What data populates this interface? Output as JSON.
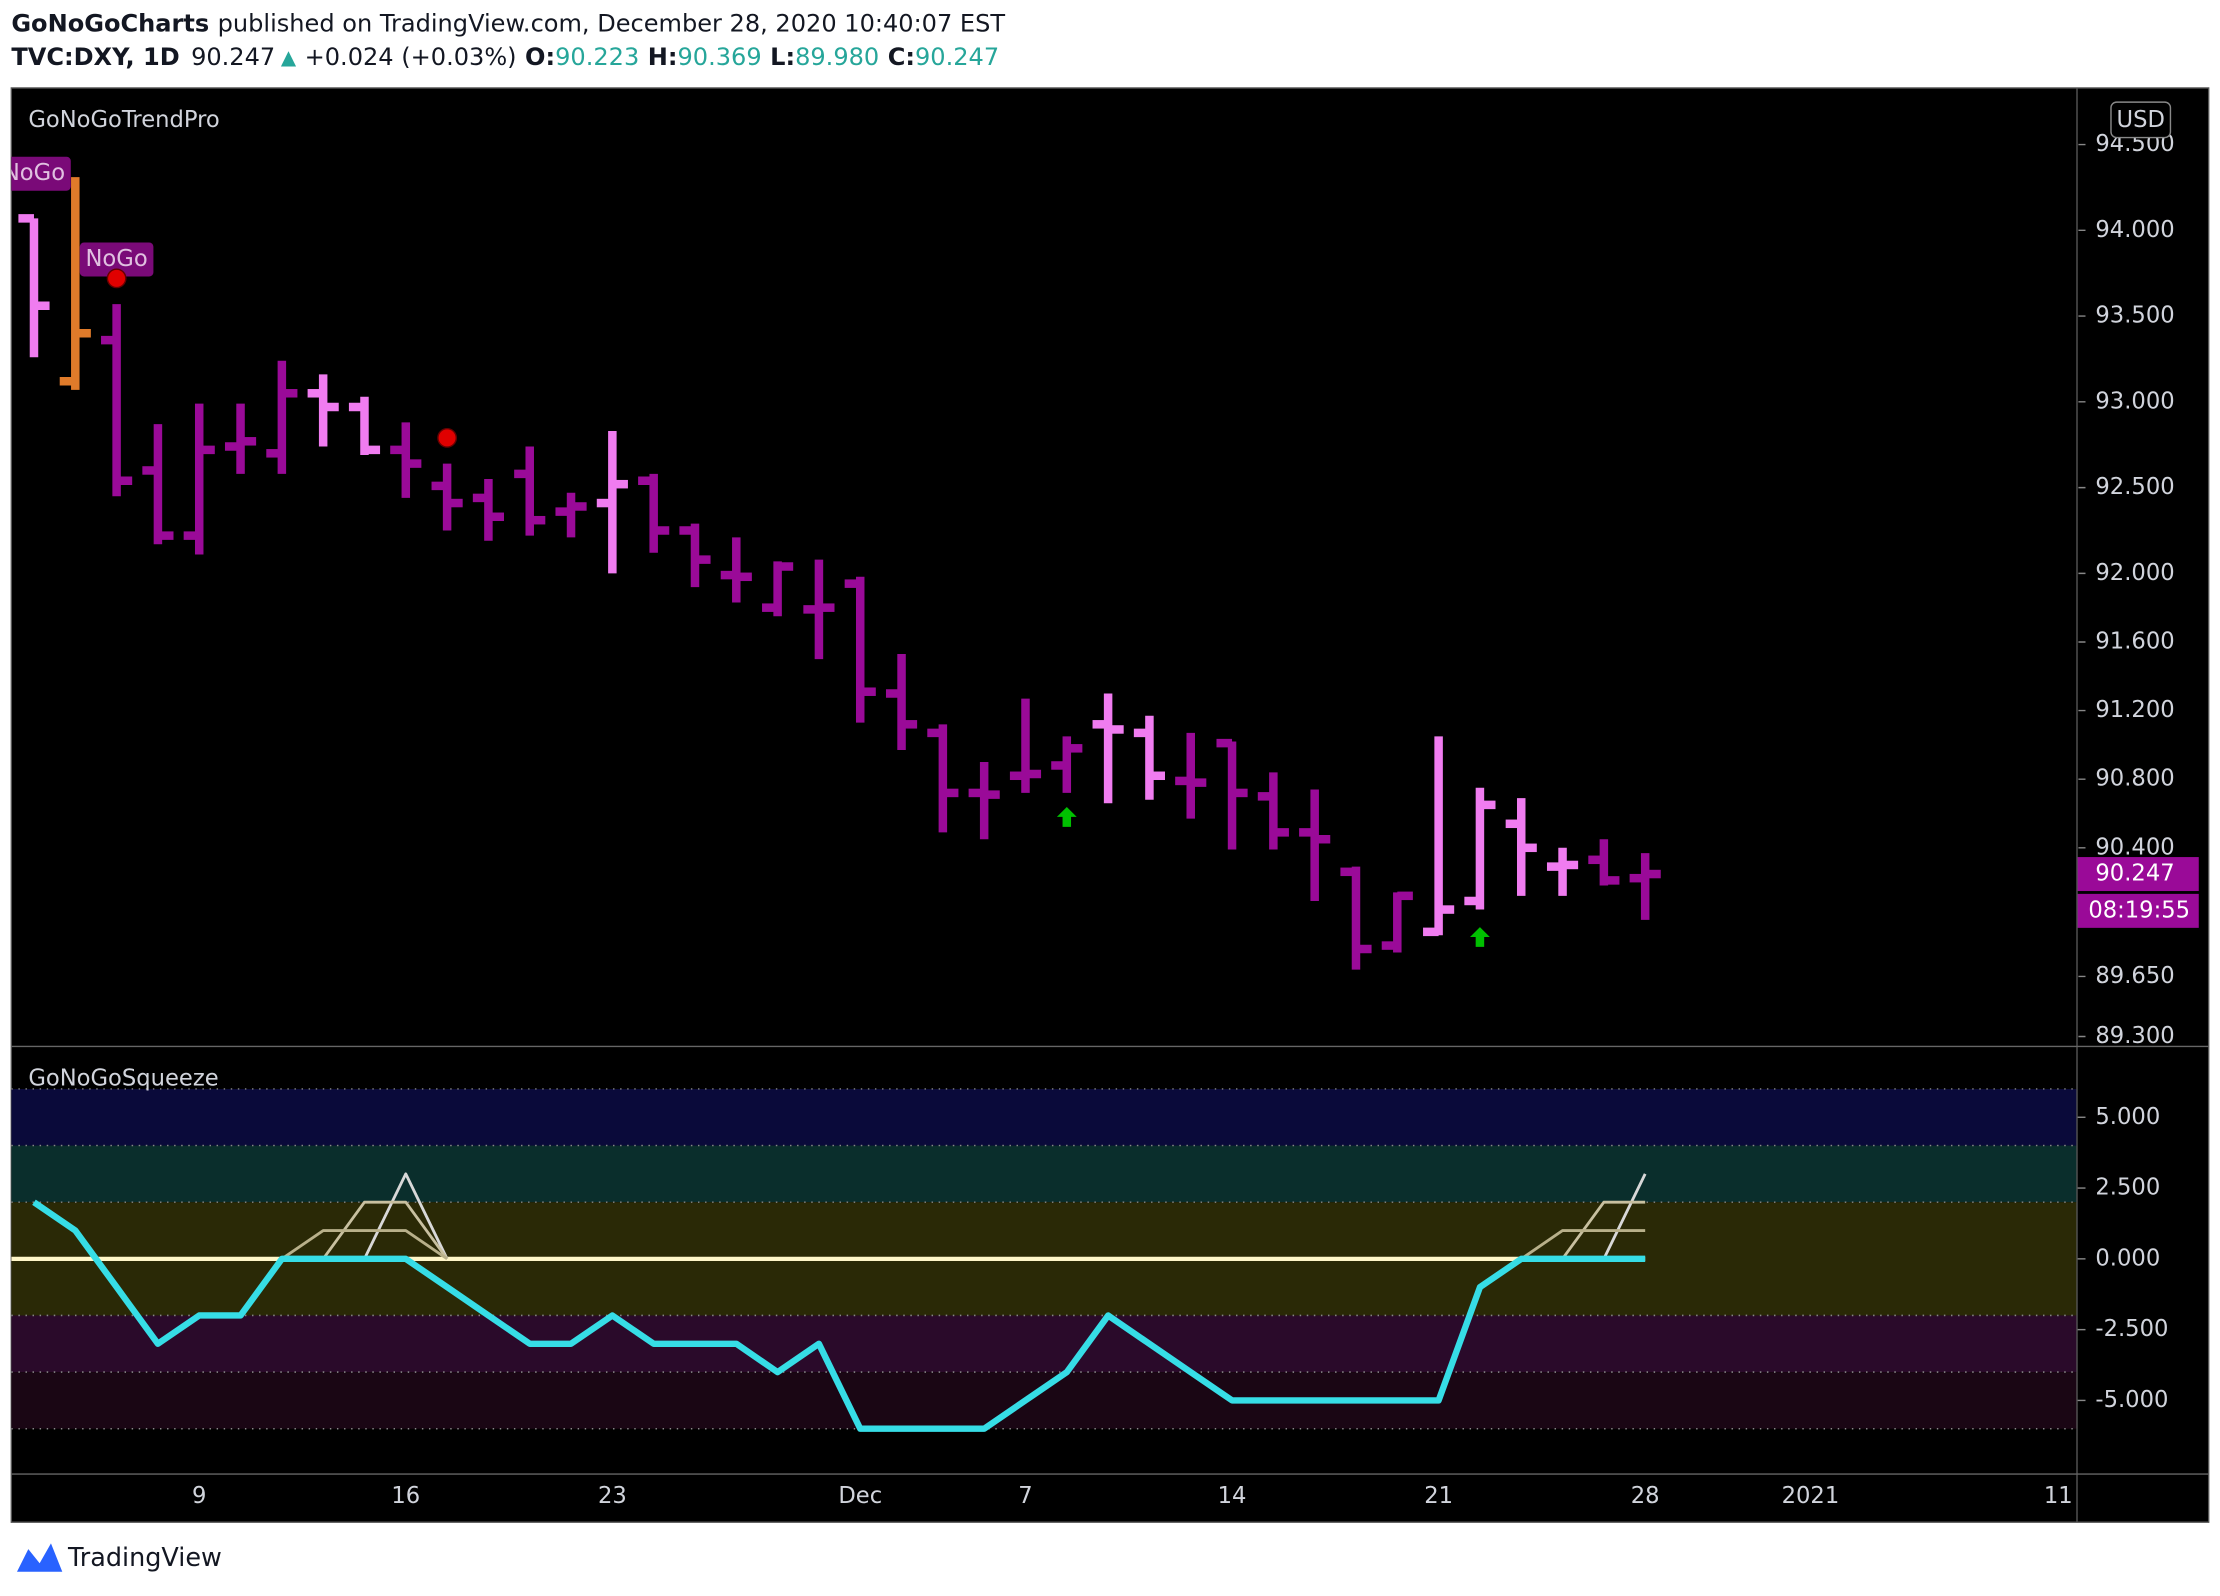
{
  "header": {
    "publisher": "GoNoGoCharts",
    "published": "published on TradingView.com, December 28, 2020 10:40:07 EST",
    "symbol": "TVC:DXY, 1D",
    "last": "90.247",
    "direction": "▲",
    "change": "+0.024 (+0.03%)",
    "o_key": "O:",
    "o_val": "90.223",
    "h_key": "H:",
    "h_val": "90.369",
    "l_key": "L:",
    "l_val": "89.980",
    "c_key": "C:",
    "c_val": "90.247"
  },
  "currency": "USD",
  "footer": "TradingView",
  "chart_data": [
    {
      "type": "ohlc",
      "title": "GoNoGoTrendPro",
      "categories": [
        null,
        null,
        null,
        null,
        "9",
        null,
        null,
        null,
        null,
        "16",
        null,
        null,
        null,
        null,
        "23",
        null,
        null,
        null,
        null,
        null,
        "Dec",
        null,
        null,
        null,
        "7",
        null,
        null,
        null,
        null,
        "14",
        null,
        null,
        null,
        null,
        "21",
        null,
        null,
        null,
        null,
        "28",
        null,
        null,
        null,
        "2021",
        null,
        null,
        null,
        null,
        null,
        "11"
      ],
      "open": [
        94.07,
        93.12,
        93.36,
        92.6,
        92.22,
        92.74,
        92.7,
        93.05,
        92.97,
        92.72,
        92.51,
        92.44,
        92.58,
        92.36,
        92.41,
        92.54,
        92.25,
        91.99,
        91.8,
        91.79,
        91.94,
        91.3,
        91.07,
        90.72,
        90.82,
        90.88,
        91.12,
        91.07,
        90.79,
        91.01,
        90.7,
        90.49,
        90.26,
        89.83,
        89.91,
        90.09,
        90.54,
        90.29,
        90.33,
        90.223,
        null,
        null,
        null,
        null,
        null,
        null,
        null,
        null,
        null,
        null
      ],
      "high": [
        94.07,
        94.31,
        93.57,
        92.87,
        92.99,
        92.99,
        93.24,
        93.16,
        93.03,
        92.88,
        92.64,
        92.55,
        92.74,
        92.47,
        92.83,
        92.58,
        92.29,
        92.21,
        92.07,
        92.08,
        91.98,
        91.53,
        91.12,
        90.9,
        91.27,
        91.05,
        91.3,
        91.17,
        91.07,
        91.02,
        90.84,
        90.74,
        90.29,
        90.14,
        91.05,
        90.75,
        90.69,
        90.4,
        90.45,
        90.369,
        null,
        null,
        null,
        null,
        null,
        null,
        null,
        null,
        null,
        null
      ],
      "low": [
        93.26,
        93.07,
        92.45,
        92.17,
        92.11,
        92.58,
        92.58,
        92.74,
        92.69,
        92.44,
        92.25,
        92.19,
        92.22,
        92.21,
        92.0,
        92.12,
        91.92,
        91.83,
        91.75,
        91.5,
        91.13,
        90.97,
        90.49,
        90.45,
        90.72,
        90.72,
        90.66,
        90.68,
        90.57,
        90.39,
        90.39,
        90.09,
        89.69,
        89.79,
        89.89,
        90.04,
        90.12,
        90.12,
        90.18,
        89.98,
        null,
        null,
        null,
        null,
        null,
        null,
        null,
        null,
        null,
        null
      ],
      "close": [
        93.56,
        93.4,
        92.54,
        92.22,
        92.72,
        92.77,
        93.05,
        92.97,
        92.72,
        92.64,
        92.41,
        92.33,
        92.31,
        92.39,
        92.52,
        92.25,
        92.08,
        91.98,
        92.04,
        91.8,
        91.31,
        91.12,
        90.72,
        90.71,
        90.83,
        90.98,
        91.09,
        90.82,
        90.78,
        90.72,
        90.49,
        90.45,
        89.81,
        90.12,
        90.04,
        90.65,
        90.4,
        90.3,
        90.21,
        90.247,
        null,
        null,
        null,
        null,
        null,
        null,
        null,
        null,
        null,
        null
      ],
      "colors": [
        "#f07cf0",
        "#e07b2a",
        "#9a0a98",
        "#9a0a98",
        "#9a0a98",
        "#9a0a98",
        "#9a0a98",
        "#f07cf0",
        "#f07cf0",
        "#9a0a98",
        "#9a0a98",
        "#9a0a98",
        "#9a0a98",
        "#9a0a98",
        "#f07cf0",
        "#9a0a98",
        "#9a0a98",
        "#9a0a98",
        "#9a0a98",
        "#9a0a98",
        "#9a0a98",
        "#9a0a98",
        "#9a0a98",
        "#9a0a98",
        "#9a0a98",
        "#9a0a98",
        "#f07cf0",
        "#f07cf0",
        "#9a0a98",
        "#9a0a98",
        "#9a0a98",
        "#9a0a98",
        "#9a0a98",
        "#9a0a98",
        "#f07cf0",
        "#f07cf0",
        "#f07cf0",
        "#f07cf0",
        "#9a0a98",
        "#9a0a98",
        null,
        null,
        null,
        null,
        null,
        null,
        null,
        null,
        null,
        null
      ],
      "ylim": [
        89.25,
        94.83
      ],
      "yticks": [
        {
          "value": 94.5,
          "label": "94.500"
        },
        {
          "value": 94.0,
          "label": "94.000"
        },
        {
          "value": 93.5,
          "label": "93.500"
        },
        {
          "value": 93.0,
          "label": "93.000"
        },
        {
          "value": 92.5,
          "label": "92.500"
        },
        {
          "value": 92.0,
          "label": "92.000"
        },
        {
          "value": 91.6,
          "label": "91.600"
        },
        {
          "value": 91.2,
          "label": "91.200"
        },
        {
          "value": 90.8,
          "label": "90.800"
        },
        {
          "value": 90.4,
          "label": "90.400"
        },
        {
          "value": 89.65,
          "label": "89.650"
        },
        {
          "value": 89.3,
          "label": "89.300"
        }
      ],
      "markers": [
        {
          "index": 0,
          "value": 94.33,
          "shape": "label",
          "text": "NoGo",
          "color": "#7a0a78"
        },
        {
          "index": 2,
          "value": 93.83,
          "shape": "label",
          "text": "NoGo",
          "color": "#7a0a78"
        },
        {
          "index": 2,
          "value": 93.72,
          "shape": "dot",
          "color": "#e00000"
        },
        {
          "index": 10,
          "value": 92.79,
          "shape": "dot",
          "color": "#e00000"
        },
        {
          "index": 25,
          "value": 90.58,
          "shape": "arrow",
          "color": "#00c000"
        },
        {
          "index": 35,
          "value": 89.88,
          "shape": "arrow",
          "color": "#00c000"
        }
      ],
      "last_label": "90.247",
      "countdown": "08:19:55",
      "badge_color": "#9a0a98"
    },
    {
      "type": "line",
      "title": "GoNoGoSqueeze",
      "series": [
        {
          "color": "#36dde6",
          "values": [
            2,
            1,
            -1,
            -3,
            -2,
            -2,
            0,
            0,
            0,
            0,
            -1,
            -2,
            -3,
            -3,
            -2,
            -3,
            -3,
            -3,
            -4,
            -3,
            -6,
            -6,
            -6,
            -6,
            -5,
            -4,
            -2,
            -3,
            -4,
            -5,
            -5,
            -5,
            -5,
            -5,
            -5,
            -1,
            0,
            0,
            0,
            0,
            null,
            null,
            null,
            null,
            null,
            null,
            null,
            null,
            null,
            null
          ]
        },
        {
          "color": "#b8b08a",
          "values": [
            null,
            null,
            null,
            null,
            null,
            null,
            0,
            1,
            1,
            1,
            0,
            null,
            null,
            null,
            null,
            null,
            null,
            null,
            null,
            null,
            null,
            null,
            null,
            null,
            null,
            null,
            null,
            null,
            null,
            null,
            null,
            null,
            null,
            null,
            null,
            null,
            0,
            1,
            1,
            1,
            null,
            null,
            null,
            null,
            null,
            null,
            null,
            null,
            null,
            null
          ]
        },
        {
          "color": "#c8c0a0",
          "values": [
            null,
            null,
            null,
            null,
            null,
            null,
            null,
            0,
            2,
            2,
            0,
            null,
            null,
            null,
            null,
            null,
            null,
            null,
            null,
            null,
            null,
            null,
            null,
            null,
            null,
            null,
            null,
            null,
            null,
            null,
            null,
            null,
            null,
            null,
            null,
            null,
            null,
            0,
            2,
            2,
            null,
            null,
            null,
            null,
            null,
            null,
            null,
            null,
            null,
            null
          ]
        },
        {
          "color": "#d8d8d8",
          "values": [
            null,
            null,
            null,
            null,
            null,
            null,
            null,
            null,
            0,
            3,
            0,
            null,
            null,
            null,
            null,
            null,
            null,
            null,
            null,
            null,
            null,
            null,
            null,
            null,
            null,
            null,
            null,
            null,
            null,
            null,
            null,
            null,
            null,
            null,
            null,
            null,
            null,
            null,
            0,
            3,
            null,
            null,
            null,
            null,
            null,
            null,
            null,
            null,
            null,
            null
          ]
        }
      ],
      "zero_line": {
        "value": 0,
        "color": "#fff6c8"
      },
      "bands": [
        {
          "from": 4,
          "to": 6,
          "color": "#0a0a3a"
        },
        {
          "from": 2,
          "to": 4,
          "color": "#0a2e2c"
        },
        {
          "from": -2,
          "to": 2,
          "color": "#2a2906"
        },
        {
          "from": -4,
          "to": -2,
          "color": "#2a0a2a"
        },
        {
          "from": -6,
          "to": -4,
          "color": "#1a0614"
        }
      ],
      "ylim": [
        -7.55,
        7.45
      ],
      "yticks": [
        {
          "value": 5,
          "label": "5.000"
        },
        {
          "value": 2.5,
          "label": "2.500"
        },
        {
          "value": 0,
          "label": "0.000"
        },
        {
          "value": -2.5,
          "label": "-2.500"
        },
        {
          "value": -5,
          "label": "-5.000"
        }
      ]
    }
  ]
}
